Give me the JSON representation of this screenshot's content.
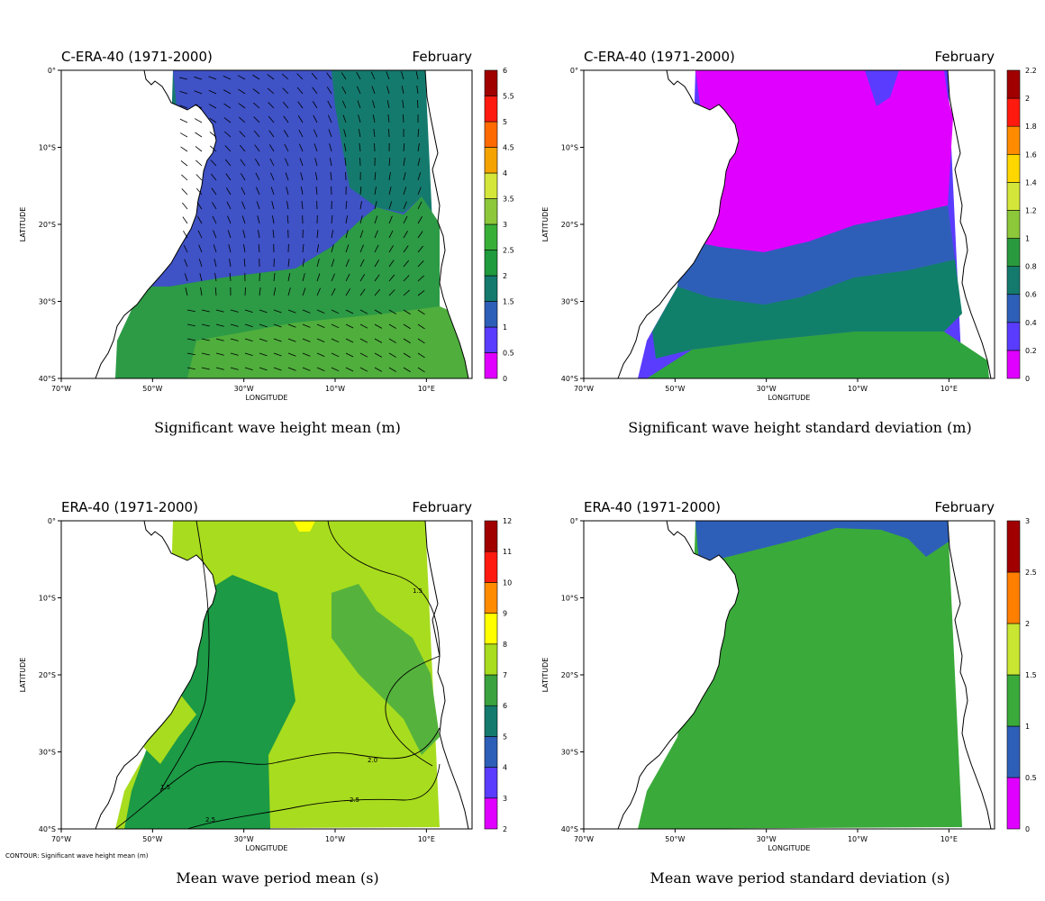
{
  "chart_data": [
    {
      "type": "heatmap",
      "id": "p1",
      "header_left": "C-ERA-40 (1971-2000)",
      "header_right": "February",
      "title": "Significant wave height mean (m)",
      "xlabel": "LONGITUDE",
      "ylabel": "LATITUDE",
      "xlim": [
        -70,
        10
      ],
      "ylim": [
        -40,
        0
      ],
      "xticks": [
        "70°W",
        "50°W",
        "30°W",
        "10°W",
        "10°E"
      ],
      "yticks": [
        "0°",
        "10°S",
        "20°S",
        "30°S",
        "40°S"
      ],
      "colorbar": {
        "levels": [
          "0",
          "0.5",
          "1",
          "1.5",
          "2",
          "2.5",
          "3",
          "3.5",
          "4",
          "4.5",
          "5",
          "5.5",
          "6"
        ],
        "colors": [
          "#e000ff",
          "#5a3cff",
          "#2e5fb8",
          "#157a6e",
          "#1f9a3c",
          "#38b038",
          "#8cc83a",
          "#d4e63a",
          "#f4a300",
          "#ff6a00",
          "#ff1a10",
          "#a00000"
        ]
      },
      "regions": [
        {
          "label": "1-1.5",
          "color": "#3f52c6"
        },
        {
          "label": "1.5-2",
          "color": "#157a6e"
        },
        {
          "label": "2-2.5",
          "color": "#2d9a46"
        },
        {
          "label": "2.5-3",
          "color": "#4fae3c"
        }
      ],
      "vectors": "wind direction arrows overlay"
    },
    {
      "type": "heatmap",
      "id": "p2",
      "header_left": "C-ERA-40 (1971-2000)",
      "header_right": "February",
      "title": "Significant wave height standard deviation (m)",
      "xlabel": "LONGITUDE",
      "ylabel": "LATITUDE",
      "xlim": [
        -70,
        10
      ],
      "ylim": [
        -40,
        0
      ],
      "xticks": [
        "70°W",
        "50°W",
        "30°W",
        "10°W",
        "10°E"
      ],
      "yticks": [
        "0°",
        "10°S",
        "20°S",
        "30°S",
        "40°S"
      ],
      "colorbar": {
        "levels": [
          "0",
          "0.2",
          "0.4",
          "0.6",
          "0.8",
          "1",
          "1.2",
          "1.4",
          "1.6",
          "1.8",
          "2",
          "2.2"
        ],
        "colors": [
          "#e000ff",
          "#5a3cff",
          "#2e5fb8",
          "#157a6e",
          "#2a9a3e",
          "#8cc83a",
          "#d4e63a",
          "#ffd700",
          "#ff8c00",
          "#ff1a10",
          "#a00000"
        ]
      },
      "regions": [
        {
          "label": "0-0.2",
          "color": "#e000ff"
        },
        {
          "label": "0.2-0.4",
          "color": "#5a3cff"
        },
        {
          "label": "0.4-0.6",
          "color": "#2e5fb8"
        },
        {
          "label": "0.6-0.8",
          "color": "#11806a"
        },
        {
          "label": "0.8-1",
          "color": "#2fa33d"
        }
      ]
    },
    {
      "type": "heatmap",
      "id": "p3",
      "header_left": "ERA-40 (1971-2000)",
      "header_right": "February",
      "title": "Mean wave period mean (s)",
      "xlabel": "LONGITUDE",
      "ylabel": "LATITUDE",
      "xlim": [
        -70,
        10
      ],
      "ylim": [
        -40,
        0
      ],
      "xticks": [
        "70°W",
        "50°W",
        "30°W",
        "10°W",
        "10°E"
      ],
      "yticks": [
        "0°",
        "10°S",
        "20°S",
        "30°S",
        "40°S"
      ],
      "colorbar": {
        "levels": [
          "2",
          "3",
          "4",
          "5",
          "6",
          "7",
          "8",
          "9",
          "10",
          "11",
          "12"
        ],
        "colors": [
          "#e000ff",
          "#5a3cff",
          "#2e5fb8",
          "#157a6e",
          "#3aa23e",
          "#a8dc1e",
          "#ffff00",
          "#ff8c00",
          "#ff1a10",
          "#a00000"
        ]
      },
      "regions": [
        {
          "label": "5-6",
          "color": "#1c9a45"
        },
        {
          "label": "6-7",
          "color": "#55b33d"
        },
        {
          "label": "7-8",
          "color": "#a8dc1e"
        },
        {
          "label": "8-9",
          "color": "#ffff00"
        }
      ],
      "contour_labels": [
        "1.5",
        "2.0",
        "2.5",
        "1.5",
        "2.5"
      ],
      "contour_note": "CONTOUR: Significant wave height mean (m)"
    },
    {
      "type": "heatmap",
      "id": "p4",
      "header_left": "ERA-40 (1971-2000)",
      "header_right": "February",
      "title": "Mean wave period standard deviation (s)",
      "xlabel": "LONGITUDE",
      "ylabel": "LATITUDE",
      "xlim": [
        -70,
        10
      ],
      "ylim": [
        -40,
        0
      ],
      "xticks": [
        "70°W",
        "50°W",
        "30°W",
        "10°W",
        "10°E"
      ],
      "yticks": [
        "0°",
        "10°S",
        "20°S",
        "30°S",
        "40°S"
      ],
      "colorbar": {
        "levels": [
          "0",
          "0.5",
          "1",
          "1.5",
          "2",
          "2.5",
          "3"
        ],
        "colors": [
          "#e000ff",
          "#2e5fb8",
          "#3aaa3a",
          "#c8e632",
          "#ff7f00",
          "#a00000"
        ]
      },
      "regions": [
        {
          "label": "0.5-1",
          "color": "#2e5fb8"
        },
        {
          "label": "1-1.5",
          "color": "#3aaa3a"
        }
      ]
    }
  ]
}
